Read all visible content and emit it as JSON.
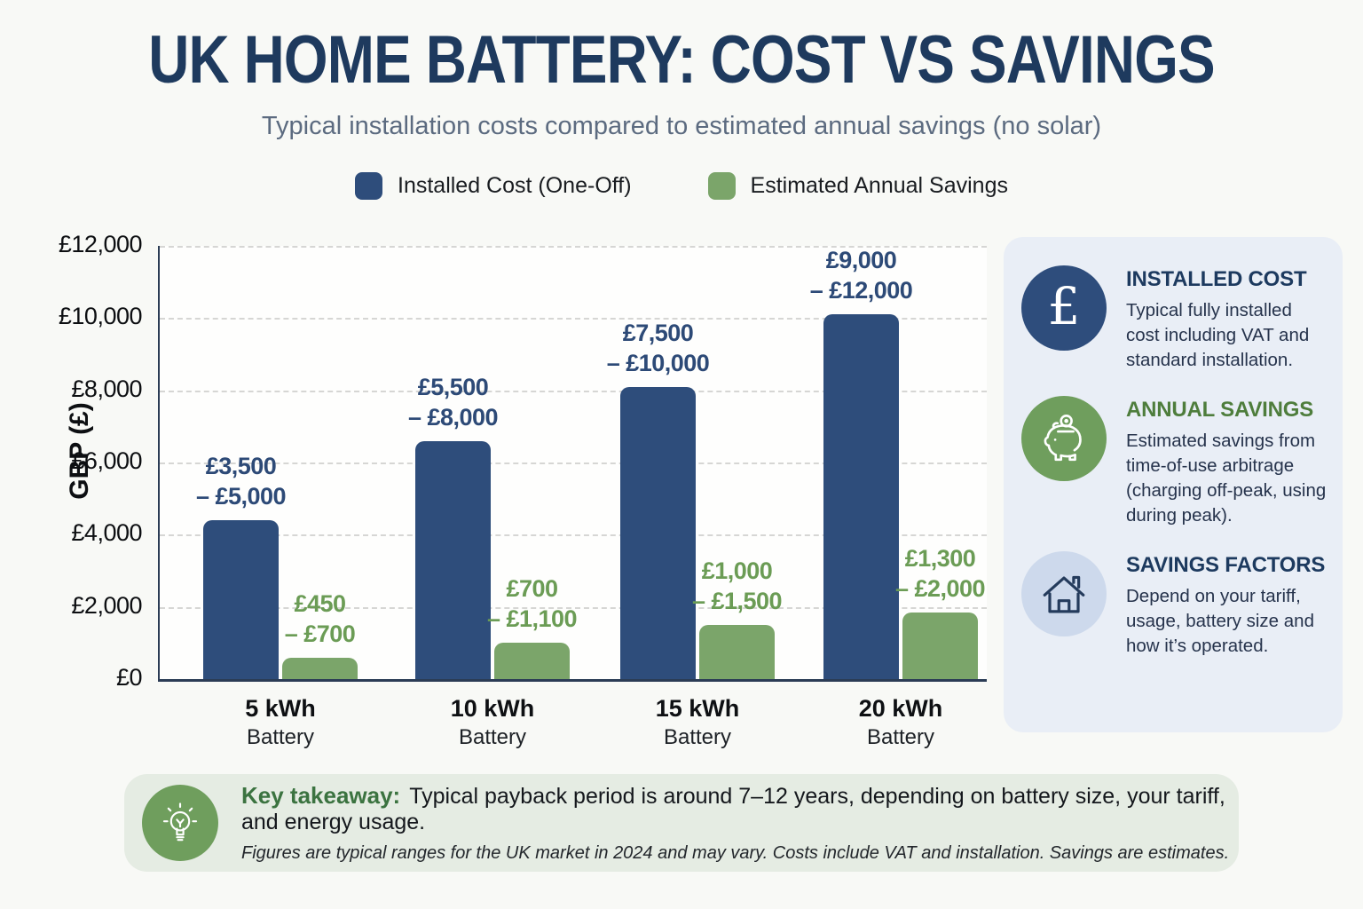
{
  "page": {
    "title": "UK HOME BATTERY: COST VS SAVINGS",
    "subtitle": "Typical installation costs compared to estimated annual savings (no solar)"
  },
  "legend": {
    "items": [
      {
        "label": "Installed Cost (One-Off)",
        "color": "#2e4d7b"
      },
      {
        "label": "Estimated Annual Savings",
        "color": "#7ba56a"
      }
    ]
  },
  "chart_data": {
    "type": "bar",
    "title": "UK Home Battery: Cost vs Savings",
    "ylabel": "GBP (£)",
    "ylim": [
      0,
      12000
    ],
    "ytick_labels": [
      "£0",
      "£2,000",
      "£4,000",
      "£6,000",
      "£8,000",
      "£10,000",
      "£12,000"
    ],
    "grid": "horizontal-dashed",
    "legend_position": "top",
    "categories": [
      {
        "line1": "5 kWh",
        "line2": "Battery"
      },
      {
        "line1": "10 kWh",
        "line2": "Battery"
      },
      {
        "line1": "15 kWh",
        "line2": "Battery"
      },
      {
        "line1": "20 kWh",
        "line2": "Battery"
      }
    ],
    "series": [
      {
        "name": "Installed Cost (One-Off)",
        "color": "#2e4d7b",
        "label_color": "#2d4a77",
        "bar_heights_gbp": [
          4400,
          6600,
          8100,
          10100
        ],
        "range_labels": [
          [
            "£3,500",
            "– £5,000"
          ],
          [
            "£5,500",
            "– £8,000"
          ],
          [
            "£7,500",
            "– £10,000"
          ],
          [
            "£9,000",
            "– £12,000"
          ]
        ]
      },
      {
        "name": "Estimated Annual Savings",
        "color": "#7ba56a",
        "label_color": "#6b9c55",
        "bar_heights_gbp": [
          600,
          1000,
          1500,
          1850
        ],
        "range_labels": [
          [
            "£450",
            "– £700"
          ],
          [
            "£700",
            "– £1,100"
          ],
          [
            "£1,000",
            "– £1,500"
          ],
          [
            "£1,300",
            "– £2,000"
          ]
        ]
      }
    ]
  },
  "sidebar": {
    "cards": [
      {
        "icon": "pound-icon",
        "icon_bg": "#2e4d7c",
        "heading": "INSTALLED COST",
        "heading_color": "#1d3a5f",
        "body": "Typical fully installed cost including VAT and standard installation."
      },
      {
        "icon": "piggy-bank-icon",
        "icon_bg": "#6f9e5d",
        "heading": "ANNUAL SAVINGS",
        "heading_color": "#4e7d3c",
        "body": "Estimated savings from time-of-use arbitrage (charging off-peak, using during peak)."
      },
      {
        "icon": "house-icon",
        "icon_bg": "#cdd9ec",
        "heading": "SAVINGS FACTORS",
        "heading_color": "#1d3a5f",
        "body": "Depend on your tariff, usage, battery size and how it’s operated."
      }
    ]
  },
  "takeaway": {
    "icon": "lightbulb-icon",
    "label": "Key takeaway:",
    "text": "Typical payback period is around 7–12 years, depending on battery size, your tariff, and energy usage.",
    "footnote": "Figures are typical ranges for the UK market in 2024 and may vary. Costs include VAT and installation. Savings are estimates."
  }
}
